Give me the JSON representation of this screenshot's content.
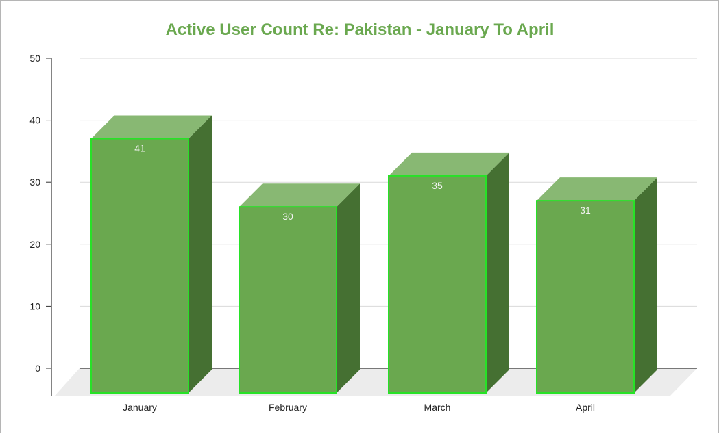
{
  "chart_data": {
    "type": "bar",
    "title": "Active User Count Re: Pakistan - January  To April",
    "xlabel": "",
    "ylabel": "",
    "categories": [
      "January",
      "February",
      "March",
      "April"
    ],
    "values": [
      41,
      30,
      35,
      31
    ],
    "data_labels": [
      "41",
      "30",
      "35",
      "31"
    ],
    "y_ticks": [
      "0",
      "10",
      "20",
      "30",
      "40",
      "50"
    ],
    "ylim": [
      0,
      50
    ],
    "grid": true,
    "style": "3d",
    "legend": "none"
  },
  "colors": {
    "title": "#6aa84f",
    "bar_front": "#6aa84f",
    "bar_top": "#88b873",
    "bar_side": "#457032",
    "bar_outline": "#27e227",
    "gridline": "#d9d9d9",
    "floor": "#ececec",
    "axis": "#333333"
  }
}
